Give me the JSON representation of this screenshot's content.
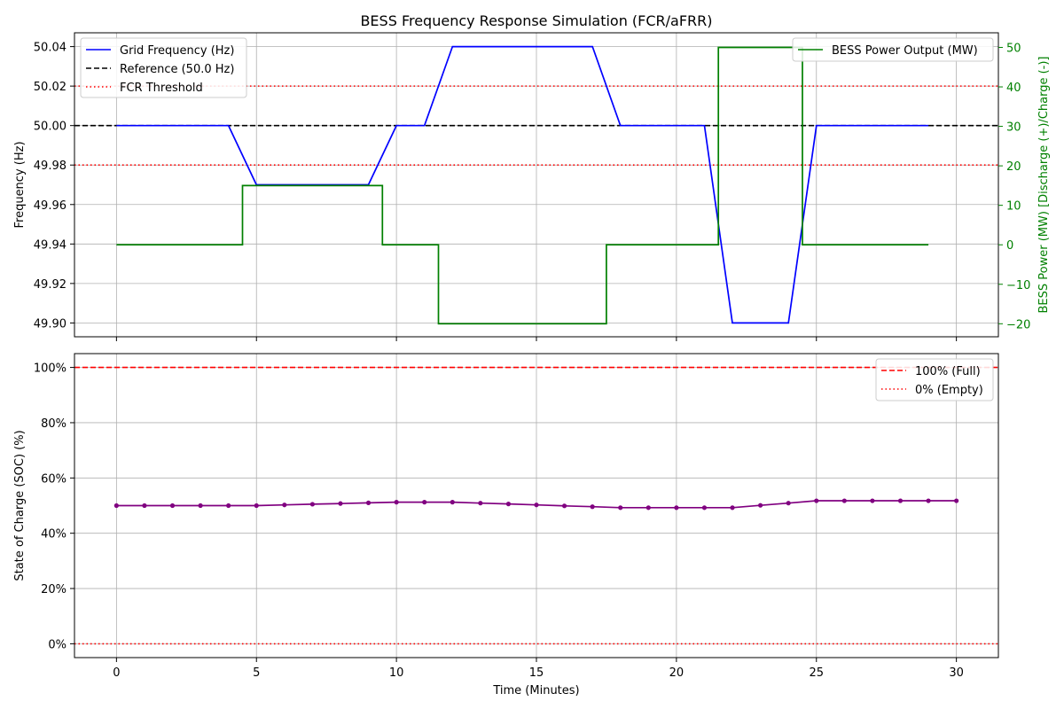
{
  "chart_data": [
    {
      "type": "line",
      "title": "BESS Frequency Response Simulation (FCR/aFRR)",
      "ylabel": "Frequency (Hz)",
      "y2label": "BESS Power (MW) [Discharge (+)/Charge (-)]",
      "xlim": [
        -1.5,
        31.5
      ],
      "ylim": [
        49.893,
        50.047
      ],
      "y2lim": [
        -23.3,
        53.7
      ],
      "yticks": [
        49.9,
        49.92,
        49.94,
        49.96,
        49.98,
        50.0,
        50.02,
        50.04
      ],
      "yticklabels": [
        "49.90",
        "49.92",
        "49.94",
        "49.96",
        "49.98",
        "50.00",
        "50.02",
        "50.04"
      ],
      "y2ticks": [
        -20,
        -10,
        0,
        10,
        20,
        30,
        40,
        50
      ],
      "y2ticklabels": [
        "−20",
        "−10",
        "0",
        "10",
        "20",
        "30",
        "40",
        "50"
      ],
      "grid": true,
      "legend_left": "top-left",
      "legend_right": "top-right",
      "series": [
        {
          "name": "Grid Frequency (Hz)",
          "color": "#0000ff",
          "axis": "left",
          "style": "solid",
          "x": [
            0,
            4,
            5,
            9,
            10,
            11,
            12,
            17,
            18,
            21,
            22,
            24,
            25,
            29
          ],
          "y": [
            50.0,
            50.0,
            49.97,
            49.97,
            50.0,
            50.0,
            50.04,
            50.04,
            50.0,
            50.0,
            49.9,
            49.9,
            50.0,
            50.0
          ]
        },
        {
          "name": "Reference (50.0 Hz)",
          "color": "#000000",
          "axis": "left",
          "style": "dashed",
          "hline": 50.0
        },
        {
          "name": "FCR Threshold",
          "color": "#ff0000",
          "axis": "left",
          "style": "dotted",
          "hlines": [
            50.02,
            49.98
          ]
        },
        {
          "name": "BESS Power Output (MW)",
          "color": "#008000",
          "axis": "right",
          "style": "step",
          "x": [
            0,
            4.5,
            9.5,
            11.5,
            17.5,
            21.5,
            24.5,
            29
          ],
          "y": [
            0,
            15,
            0,
            -20,
            0,
            50,
            0,
            0
          ]
        }
      ]
    },
    {
      "type": "line",
      "xlabel": "Time (Minutes)",
      "ylabel": "State of Charge (SOC) (%)",
      "xlim": [
        -1.5,
        31.5
      ],
      "ylim": [
        -5,
        105
      ],
      "xticks": [
        0,
        5,
        10,
        15,
        20,
        25,
        30
      ],
      "xticklabels": [
        "0",
        "5",
        "10",
        "15",
        "20",
        "25",
        "30"
      ],
      "yticks": [
        0,
        20,
        40,
        60,
        80,
        100
      ],
      "yticklabels": [
        "0%",
        "20%",
        "40%",
        "60%",
        "80%",
        "100%"
      ],
      "grid": true,
      "legend": "top-right",
      "series": [
        {
          "name": "SOC",
          "color": "#800080",
          "style": "line-markers",
          "x": [
            0,
            1,
            2,
            3,
            4,
            5,
            6,
            7,
            8,
            9,
            10,
            11,
            12,
            13,
            14,
            15,
            16,
            17,
            18,
            19,
            20,
            21,
            22,
            23,
            24,
            25,
            26,
            27,
            28,
            29,
            30
          ],
          "y": [
            50.0,
            50.0,
            50.0,
            50.0,
            50.0,
            50.0,
            50.25,
            50.5,
            50.75,
            51.0,
            51.25,
            51.25,
            51.25,
            50.9,
            50.6,
            50.25,
            49.9,
            49.6,
            49.25,
            49.25,
            49.25,
            49.25,
            49.25,
            50.1,
            50.9,
            51.75,
            51.75,
            51.75,
            51.75,
            51.75,
            51.75
          ]
        },
        {
          "name": "100% (Full)",
          "color": "#ff0000",
          "style": "dashed",
          "hline": 100
        },
        {
          "name": "0% (Empty)",
          "color": "#ff0000",
          "style": "dotted",
          "hline": 0
        }
      ]
    }
  ]
}
